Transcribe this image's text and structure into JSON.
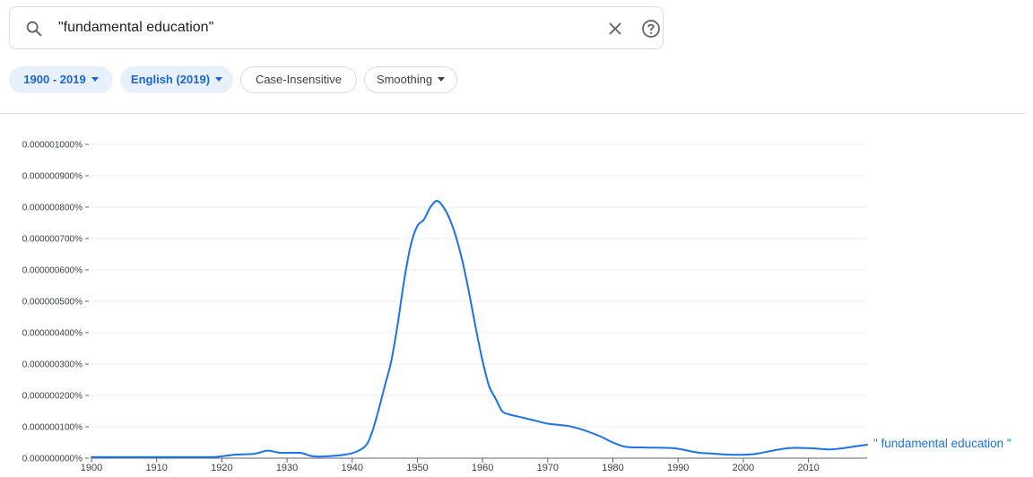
{
  "search": {
    "query": "\"fundamental education\"",
    "clear_icon": "close-icon",
    "help_icon": "help-icon"
  },
  "filters": {
    "year_range": "1900 - 2019",
    "corpus": "English (2019)",
    "case": "Case-Insensitive",
    "smoothing": "Smoothing"
  },
  "colors": {
    "accent": "#1a73e8",
    "chip_active_bg": "#e8f0fe",
    "grid": "#eeeeee"
  },
  "chart_data": {
    "type": "line",
    "title": "",
    "xlabel": "",
    "ylabel": "",
    "xlim": [
      1900,
      2019
    ],
    "ylim": [
      0,
      1e-06
    ],
    "y_ticks": [
      "0.000001000%",
      "0.000000900%",
      "0.000000800%",
      "0.000000700%",
      "0.000000600%",
      "0.000000500%",
      "0.000000400%",
      "0.000000300%",
      "0.000000200%",
      "0.000000100%",
      "0.000000000%"
    ],
    "x_ticks": [
      "1900",
      "1910",
      "1920",
      "1930",
      "1940",
      "1950",
      "1960",
      "1970",
      "1980",
      "1990",
      "2000",
      "2010"
    ],
    "grid": true,
    "legend_placement": "right-end-of-line",
    "series": [
      {
        "name": "\" fundamental education \"",
        "color": "#1a73e8",
        "points": [
          [
            1900,
            3.5e-09
          ],
          [
            1910,
            3.5e-09
          ],
          [
            1918,
            3.5e-09
          ],
          [
            1920,
            6e-09
          ],
          [
            1922,
            1.1e-08
          ],
          [
            1925,
            1.4e-08
          ],
          [
            1927,
            2.4e-08
          ],
          [
            1929,
            1.7e-08
          ],
          [
            1932,
            1.7e-08
          ],
          [
            1934,
            6e-09
          ],
          [
            1937,
            7e-09
          ],
          [
            1940,
            1.6e-08
          ],
          [
            1942,
            3.8e-08
          ],
          [
            1943,
            8e-08
          ],
          [
            1944,
            1.5e-07
          ],
          [
            1945,
            2.3e-07
          ],
          [
            1946,
            3.1e-07
          ],
          [
            1947,
            4.3e-07
          ],
          [
            1948,
            5.7e-07
          ],
          [
            1949,
            6.8e-07
          ],
          [
            1950,
            7.4e-07
          ],
          [
            1951,
            7.6e-07
          ],
          [
            1952,
            8e-07
          ],
          [
            1953,
            8.2e-07
          ],
          [
            1954,
            8e-07
          ],
          [
            1955,
            7.6e-07
          ],
          [
            1956,
            7e-07
          ],
          [
            1957,
            6.2e-07
          ],
          [
            1958,
            5.2e-07
          ],
          [
            1959,
            4.1e-07
          ],
          [
            1960,
            3.1e-07
          ],
          [
            1961,
            2.3e-07
          ],
          [
            1962,
            1.9e-07
          ],
          [
            1963,
            1.5e-07
          ],
          [
            1964,
            1.4e-07
          ],
          [
            1966,
            1.3e-07
          ],
          [
            1968,
            1.2e-07
          ],
          [
            1970,
            1.1e-07
          ],
          [
            1973,
            1.03e-07
          ],
          [
            1975,
            9.3e-08
          ],
          [
            1978,
            7e-08
          ],
          [
            1980,
            5e-08
          ],
          [
            1982,
            3.6e-08
          ],
          [
            1985,
            3.4e-08
          ],
          [
            1988,
            3.3e-08
          ],
          [
            1990,
            3e-08
          ],
          [
            1993,
            1.8e-08
          ],
          [
            1995,
            1.5e-08
          ],
          [
            1998,
            1.1e-08
          ],
          [
            2000,
            1.1e-08
          ],
          [
            2002,
            1.4e-08
          ],
          [
            2004,
            2.2e-08
          ],
          [
            2007,
            3.2e-08
          ],
          [
            2010,
            3.2e-08
          ],
          [
            2013,
            2.8e-08
          ],
          [
            2015,
            3.1e-08
          ],
          [
            2017,
            3.7e-08
          ],
          [
            2019,
            4.3e-08
          ]
        ]
      }
    ]
  }
}
